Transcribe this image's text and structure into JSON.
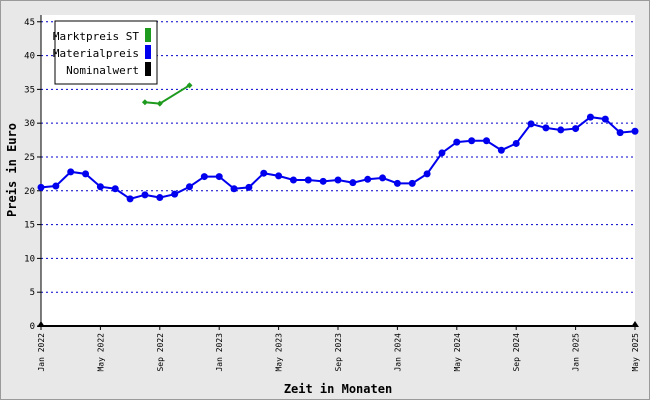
{
  "chart_data": {
    "type": "line",
    "xlabel": "Zeit in Monaten",
    "ylabel": "Preis in Euro",
    "ylim": [
      0,
      46
    ],
    "yticks": [
      0,
      5,
      10,
      15,
      20,
      25,
      30,
      35,
      40,
      45
    ],
    "xlim": [
      "2022-01",
      "2025-05"
    ],
    "xticks": [
      "Jan 2022",
      "May 2022",
      "Sep 2022",
      "Jan 2023",
      "May 2023",
      "Sep 2023",
      "Jan 2024",
      "May 2024",
      "Sep 2024",
      "Jan 2025",
      "May 2025"
    ],
    "grid": "horizontal dotted",
    "legend_position": "top-left",
    "legend": [
      {
        "name": "Marktpreis ST",
        "color": "#1e9a1e"
      },
      {
        "name": "Materialpreis",
        "color": "#0000ee"
      },
      {
        "name": "Nominalwert",
        "color": "#000000"
      }
    ],
    "series": [
      {
        "name": "Marktpreis ST",
        "color": "#1e9a1e",
        "marker": "diamond",
        "x": [
          "2022-08",
          "2022-09",
          "2022-11"
        ],
        "values": [
          33.1,
          32.9,
          35.6
        ]
      },
      {
        "name": "Materialpreis",
        "color": "#0000ee",
        "marker": "circle",
        "x": [
          "2022-01",
          "2022-02",
          "2022-03",
          "2022-04",
          "2022-05",
          "2022-06",
          "2022-07",
          "2022-08",
          "2022-09",
          "2022-10",
          "2022-11",
          "2022-12",
          "2023-01",
          "2023-02",
          "2023-03",
          "2023-04",
          "2023-05",
          "2023-06",
          "2023-07",
          "2023-08",
          "2023-09",
          "2023-10",
          "2023-11",
          "2023-12",
          "2024-01",
          "2024-02",
          "2024-03",
          "2024-04",
          "2024-05",
          "2024-06",
          "2024-07",
          "2024-08",
          "2024-09",
          "2024-10",
          "2024-11",
          "2024-12",
          "2025-01",
          "2025-02",
          "2025-03",
          "2025-04",
          "2025-05"
        ],
        "values": [
          20.5,
          20.7,
          22.8,
          22.5,
          20.6,
          20.3,
          18.8,
          19.4,
          19.0,
          19.5,
          20.6,
          22.1,
          22.1,
          20.3,
          20.5,
          22.6,
          22.2,
          21.6,
          21.6,
          21.4,
          21.6,
          21.2,
          21.7,
          21.9,
          21.1,
          21.1,
          22.5,
          25.6,
          27.2,
          27.4,
          27.4,
          26.0,
          27.0,
          29.9,
          29.3,
          29.0,
          29.2,
          30.9,
          30.6,
          28.6,
          28.8
        ]
      },
      {
        "name": "Nominalwert",
        "color": "#000000",
        "marker": "triangle",
        "x": [
          "2022-01",
          "2025-05"
        ],
        "values": [
          0,
          0
        ]
      }
    ]
  }
}
